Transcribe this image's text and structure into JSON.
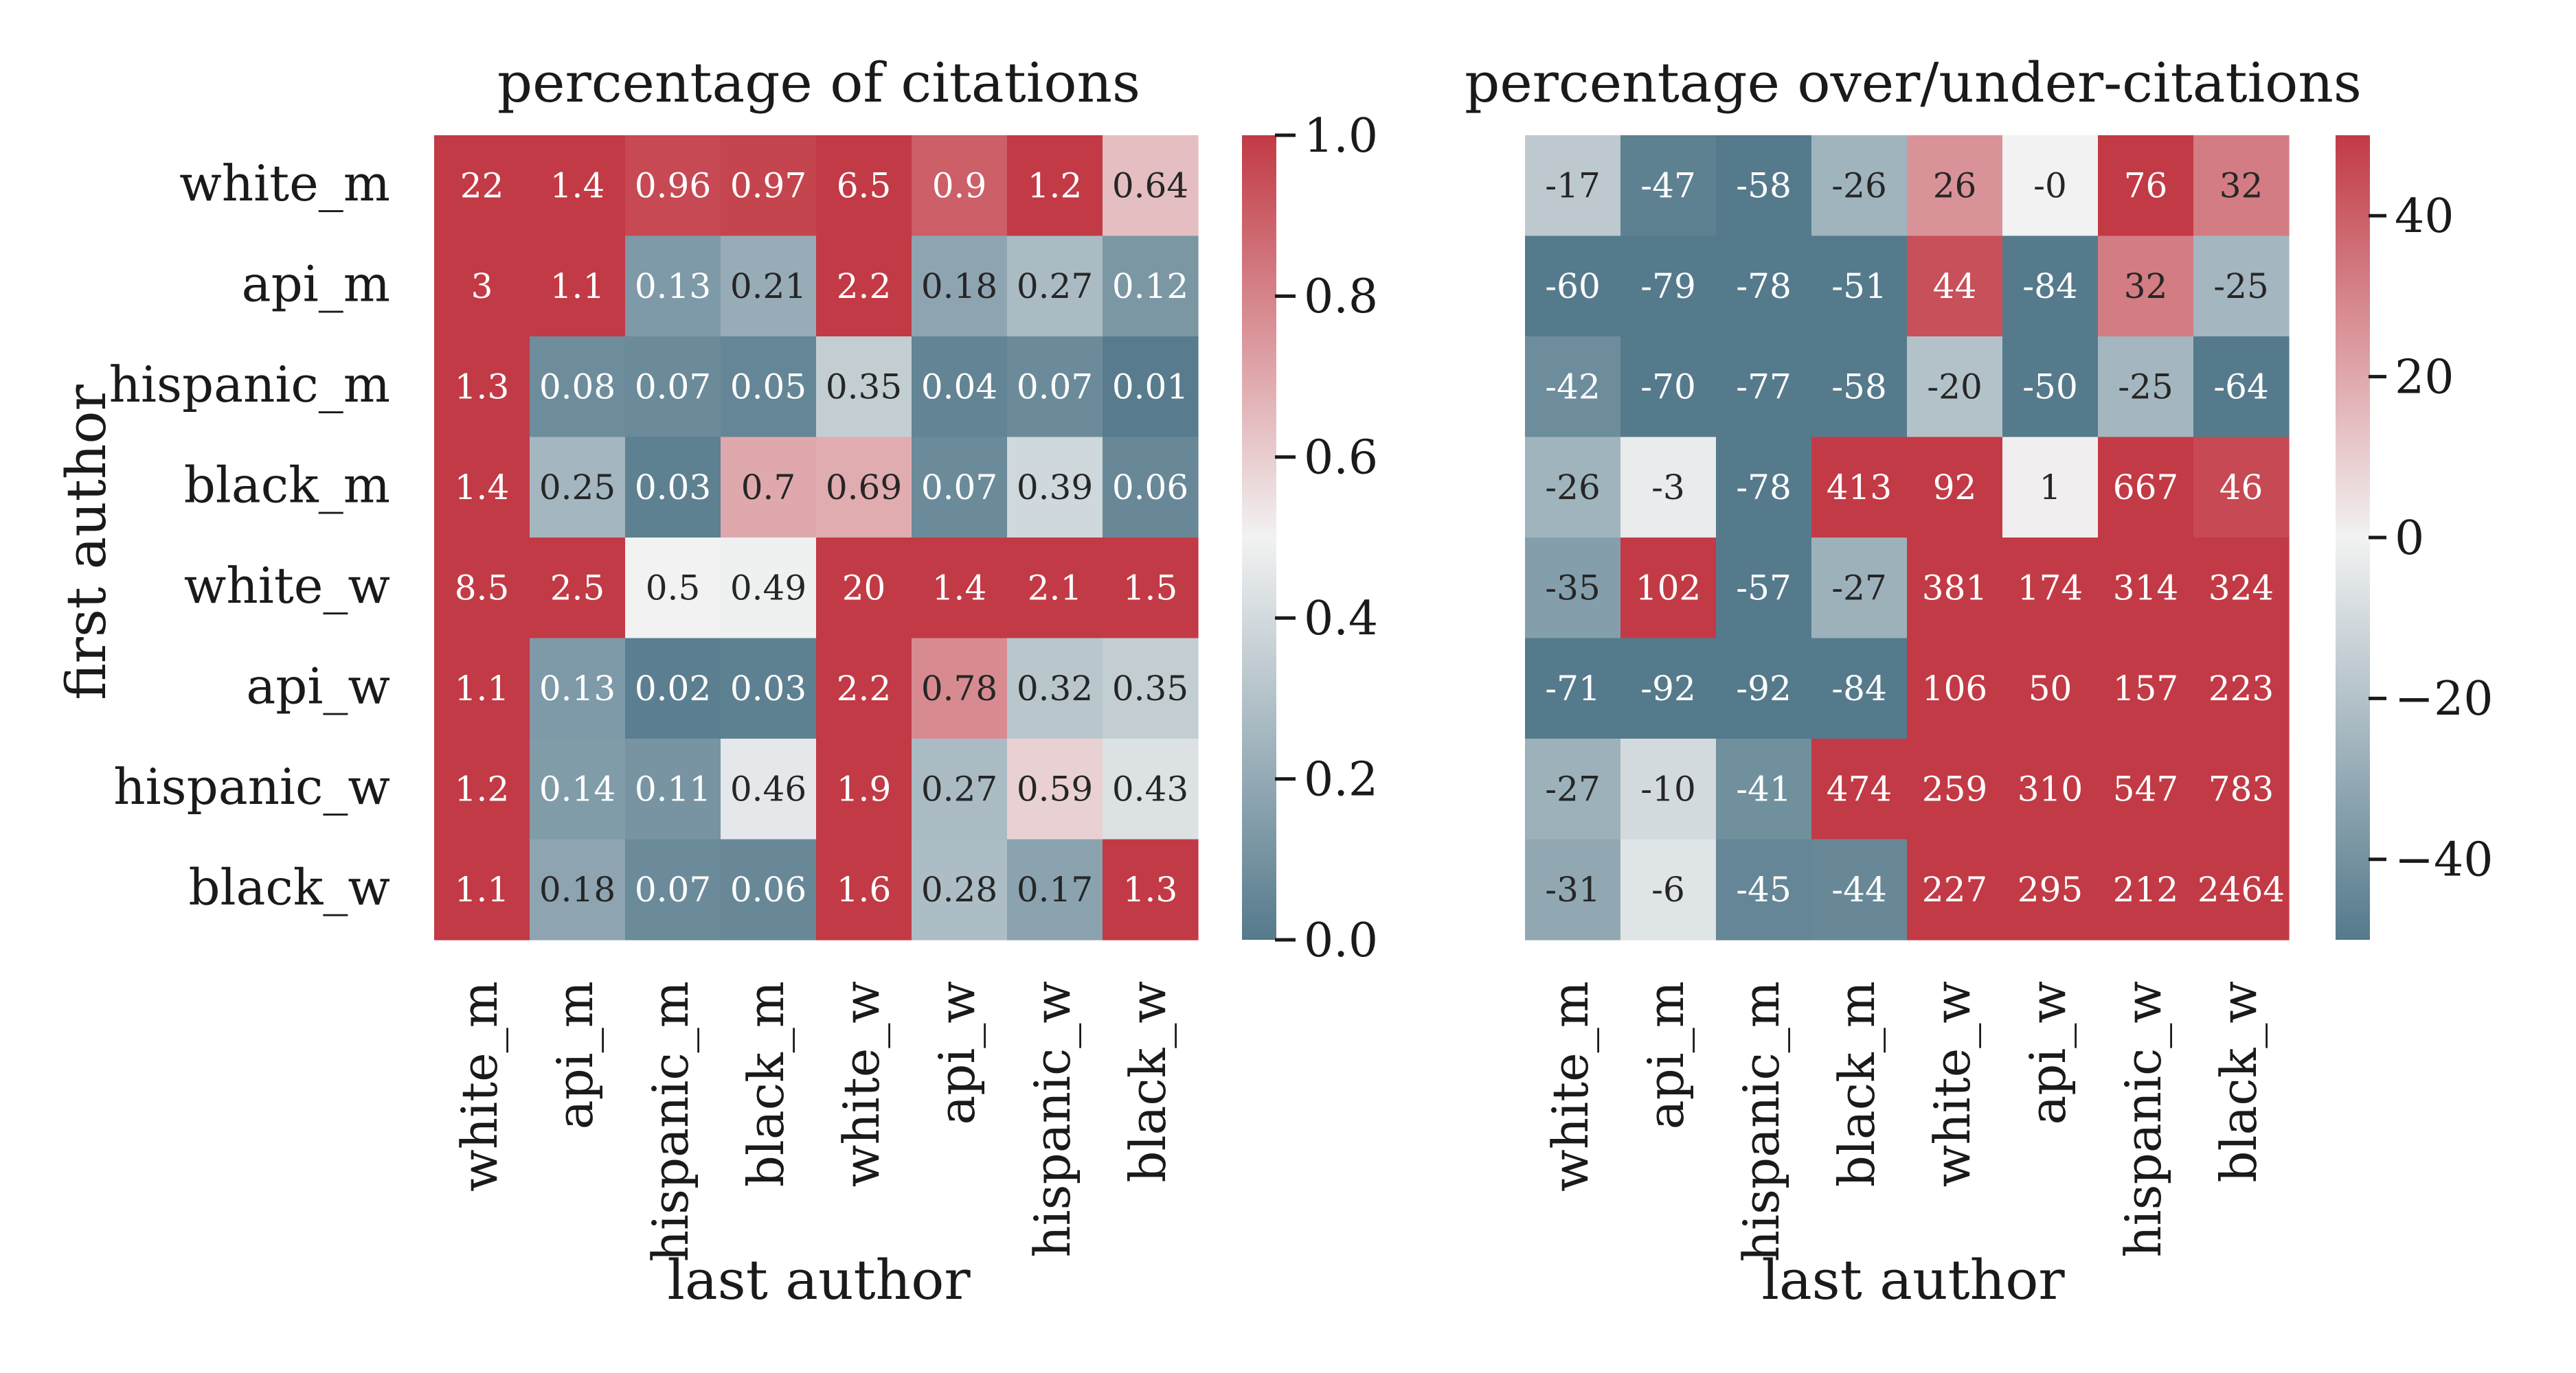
{
  "chart_data": [
    {
      "type": "heatmap",
      "title": "percentage of citations",
      "xlabel": "last author",
      "ylabel": "first author",
      "x_categories": [
        "white_m",
        "api_m",
        "hispanic_m",
        "black_m",
        "white_w",
        "api_w",
        "hispanic_w",
        "black_w"
      ],
      "y_categories": [
        "white_m",
        "api_m",
        "hispanic_m",
        "black_m",
        "white_w",
        "api_w",
        "hispanic_w",
        "black_w"
      ],
      "labels": [
        [
          "22",
          "1.4",
          "0.96",
          "0.97",
          "6.5",
          "0.9",
          "1.2",
          "0.64"
        ],
        [
          "3",
          "1.1",
          "0.13",
          "0.21",
          "2.2",
          "0.18",
          "0.27",
          "0.12"
        ],
        [
          "1.3",
          "0.08",
          "0.07",
          "0.05",
          "0.35",
          "0.04",
          "0.07",
          "0.01"
        ],
        [
          "1.4",
          "0.25",
          "0.03",
          "0.7",
          "0.69",
          "0.07",
          "0.39",
          "0.06"
        ],
        [
          "8.5",
          "2.5",
          "0.5",
          "0.49",
          "20",
          "1.4",
          "2.1",
          "1.5"
        ],
        [
          "1.1",
          "0.13",
          "0.02",
          "0.03",
          "2.2",
          "0.78",
          "0.32",
          "0.35"
        ],
        [
          "1.2",
          "0.14",
          "0.11",
          "0.46",
          "1.9",
          "0.27",
          "0.59",
          "0.43"
        ],
        [
          "1.1",
          "0.18",
          "0.07",
          "0.06",
          "1.6",
          "0.28",
          "0.17",
          "1.3"
        ]
      ],
      "vmin": 0,
      "vmax": 1,
      "colorbar_ticks": [
        "0.0",
        "0.2",
        "0.4",
        "0.6",
        "0.8",
        "1.0"
      ],
      "colorbar_tick_values": [
        0,
        0.2,
        0.4,
        0.6,
        0.8,
        1.0
      ],
      "colormap": {
        "low": "#557a8c",
        "mid": "#f2f2f2",
        "high": "#c23a45"
      },
      "light_text_color": "#ffffff",
      "dark_text_color": "#262626"
    },
    {
      "type": "heatmap",
      "title": "percentage over/under-citations",
      "xlabel": "last author",
      "ylabel": "",
      "x_categories": [
        "white_m",
        "api_m",
        "hispanic_m",
        "black_m",
        "white_w",
        "api_w",
        "hispanic_w",
        "black_w"
      ],
      "y_categories": [],
      "labels": [
        [
          "-17",
          "-47",
          "-58",
          "-26",
          "26",
          "-0",
          "76",
          "32"
        ],
        [
          "-60",
          "-79",
          "-78",
          "-51",
          "44",
          "-84",
          "32",
          "-25"
        ],
        [
          "-42",
          "-70",
          "-77",
          "-58",
          "-20",
          "-50",
          "-25",
          "-64"
        ],
        [
          "-26",
          "-3",
          "-78",
          "413",
          "92",
          "1",
          "667",
          "46"
        ],
        [
          "-35",
          "102",
          "-57",
          "-27",
          "381",
          "174",
          "314",
          "324"
        ],
        [
          "-71",
          "-92",
          "-92",
          "-84",
          "106",
          "50",
          "157",
          "223"
        ],
        [
          "-27",
          "-10",
          "-41",
          "474",
          "259",
          "310",
          "547",
          "783"
        ],
        [
          "-31",
          "-6",
          "-45",
          "-44",
          "227",
          "295",
          "212",
          "2464"
        ]
      ],
      "vmin": -50,
      "vmax": 50,
      "colorbar_ticks": [
        "40",
        "20",
        "0",
        "−20",
        "−40"
      ],
      "colorbar_tick_values": [
        40,
        20,
        0,
        -20,
        -40
      ],
      "colormap": {
        "low": "#557a8c",
        "mid": "#f2f2f2",
        "high": "#c23a45"
      },
      "light_text_color": "#ffffff",
      "dark_text_color": "#262626"
    }
  ]
}
